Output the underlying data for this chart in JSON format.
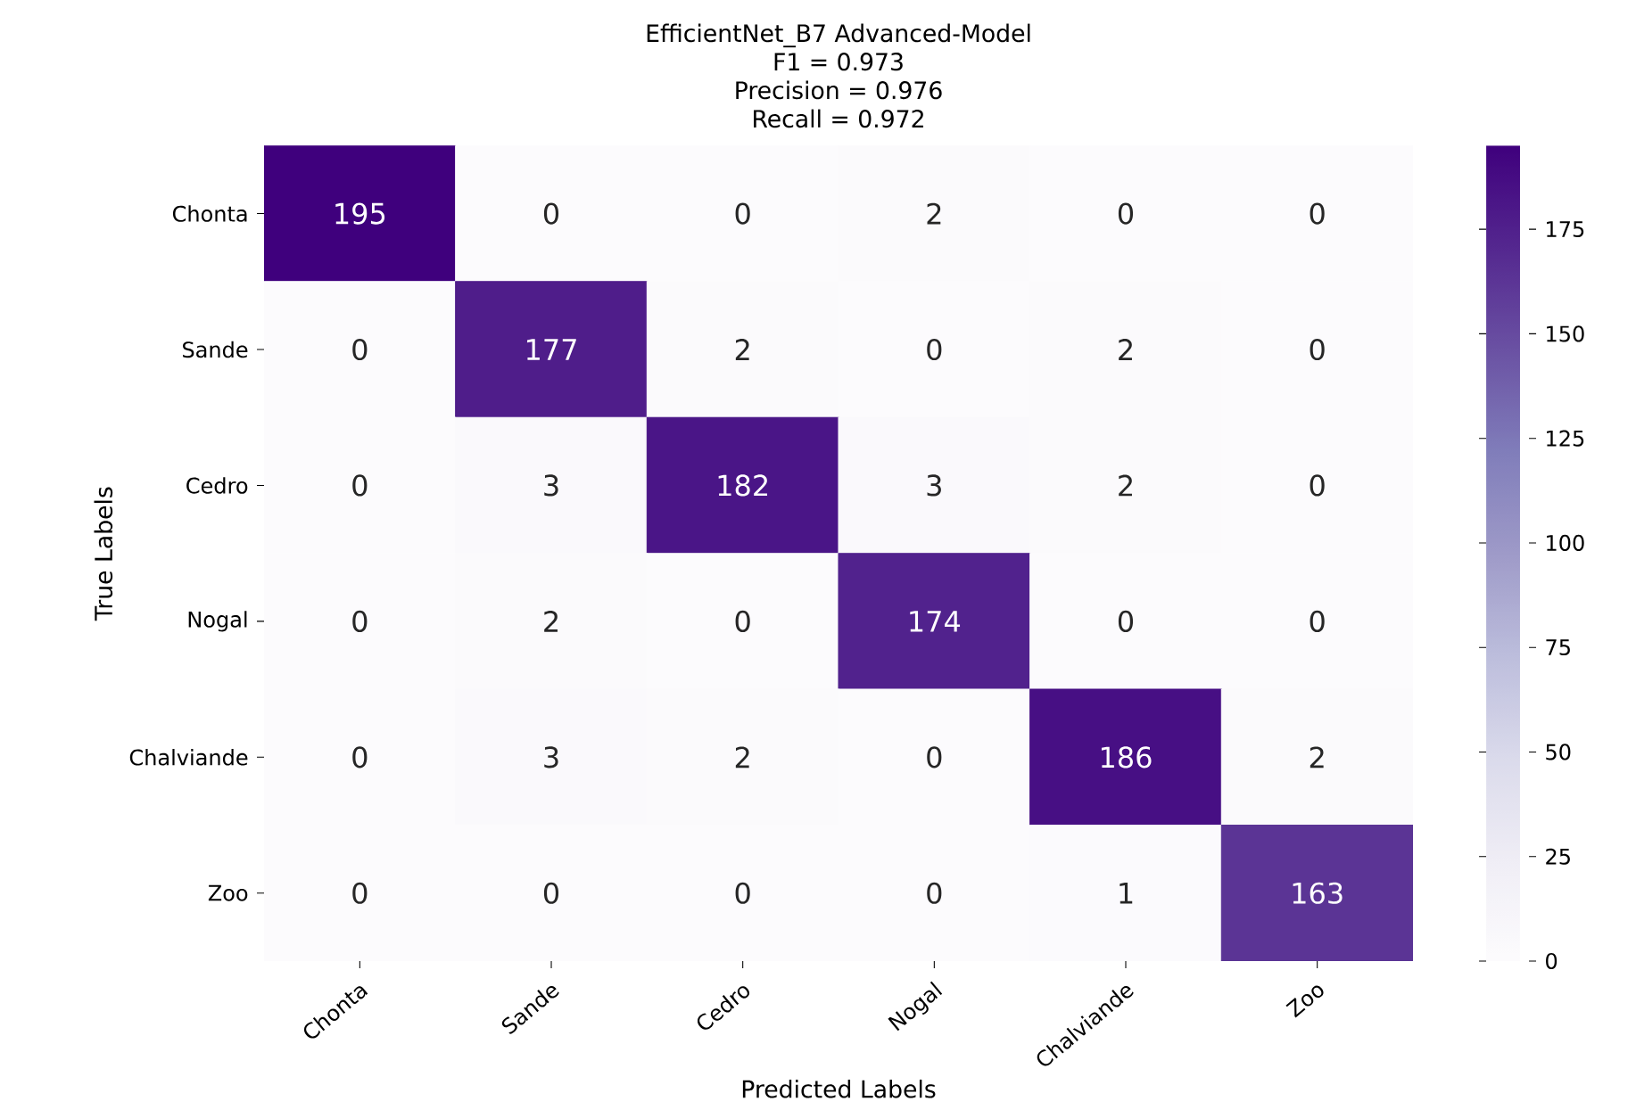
{
  "chart_data": {
    "type": "heatmap",
    "title": "EfficientNet_B7 Advanced-Model",
    "annotations": [
      "F1 = 0.973",
      "Precision = 0.976",
      "Recall = 0.972"
    ],
    "xlabel": "Predicted Labels",
    "ylabel": "True Labels",
    "categories": [
      "Chonta",
      "Sande",
      "Cedro",
      "Nogal",
      "Chalviande",
      "Zoo"
    ],
    "y_categories": [
      "Chonta",
      "Sande",
      "Cedro",
      "Nogal",
      "Chalviande",
      "Zoo"
    ],
    "cells": [
      [
        195,
        0,
        0,
        2,
        0,
        0
      ],
      [
        0,
        177,
        2,
        0,
        2,
        0
      ],
      [
        0,
        3,
        182,
        3,
        2,
        0
      ],
      [
        0,
        2,
        0,
        174,
        0,
        0
      ],
      [
        0,
        3,
        2,
        0,
        186,
        2
      ],
      [
        0,
        0,
        0,
        0,
        1,
        163
      ]
    ],
    "clim": [
      0,
      195
    ],
    "cticks": [
      0,
      25,
      50,
      75,
      100,
      125,
      150,
      175
    ],
    "data_labels": true
  }
}
